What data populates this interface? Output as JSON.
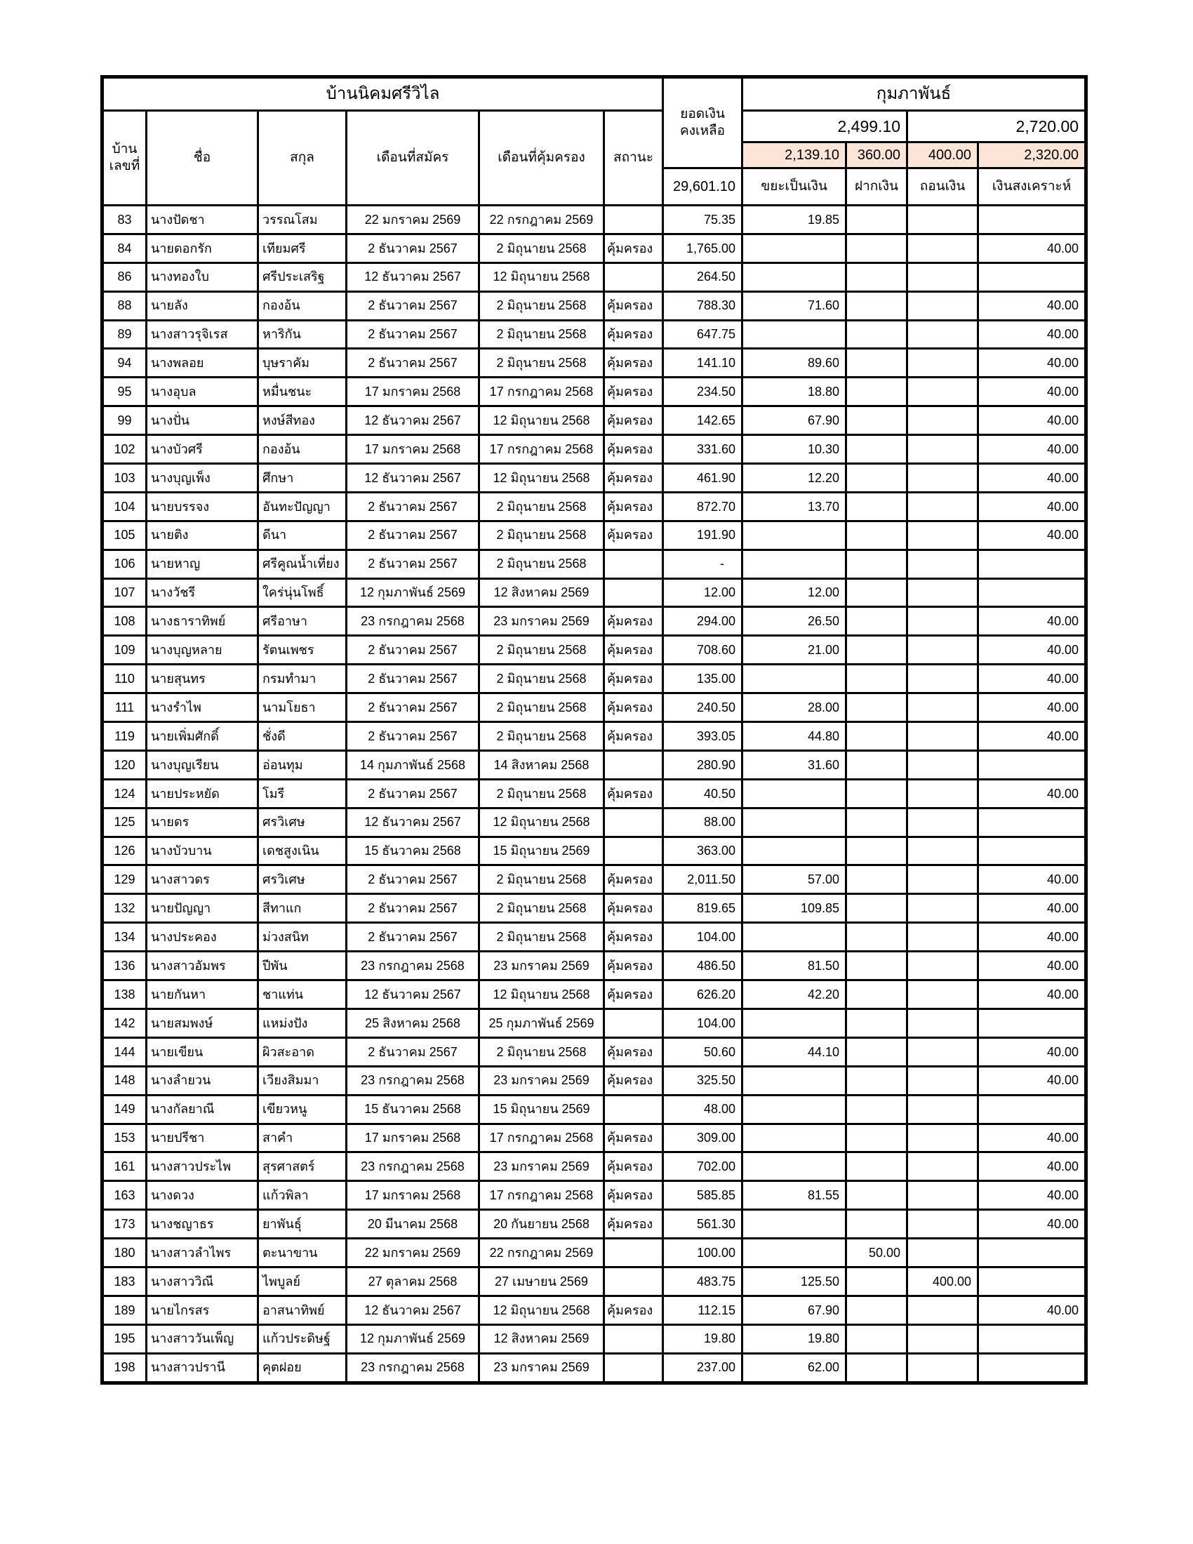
{
  "table": {
    "title": "บ้านนิคมศรีวิไล",
    "month_header": "กุมภาพันธ์",
    "balance_header": {
      "line1": "ยอดเงิน",
      "line2": "คงเหลือ"
    },
    "month_totals": {
      "group1": "2,499.10",
      "group2": "2,720.00"
    },
    "subtotals": {
      "waste": "2,139.10",
      "deposit": "360.00",
      "withdraw": "400.00",
      "aid": "2,320.00"
    },
    "total_balance": "29,601.10",
    "accent_color": "#fce4d6",
    "columns": {
      "house_no": {
        "line1": "บ้าน",
        "line2": "เลขที่"
      },
      "first_name": "ชื่อ",
      "last_name": "สกุล",
      "apply_month": "เดือนที่สมัคร",
      "cover_month": "เดือนที่คุ้มครอง",
      "status": "สถานะ",
      "waste_money": "ขยะเป็นเงิน",
      "deposit": "ฝากเงิน",
      "withdraw": "ถอนเงิน",
      "aid": "เงินสงเคราะห์"
    },
    "status_protected_label": "คุ้มครอง",
    "rows": [
      {
        "house_no": "83",
        "first_name": "นางปัดชา",
        "last_name": "วรรณโสม",
        "apply_month": "22 มกราคม 2569",
        "cover_month": "22 กรกฎาคม 2569",
        "status": "",
        "balance": "75.35",
        "waste": "19.85",
        "deposit": "",
        "withdraw": "",
        "aid": ""
      },
      {
        "house_no": "84",
        "first_name": "นายดอกรัก",
        "last_name": "เทียมศรี",
        "apply_month": "2 ธันวาคม 2567",
        "cover_month": "2 มิถุนายน 2568",
        "status": "คุ้มครอง",
        "balance": "1,765.00",
        "waste": "",
        "deposit": "",
        "withdraw": "",
        "aid": "40.00"
      },
      {
        "house_no": "86",
        "first_name": "นางทองใบ",
        "last_name": "ศรีประเสริฐ",
        "apply_month": "12 ธันวาคม 2567",
        "cover_month": "12 มิถุนายน 2568",
        "status": "",
        "balance": "264.50",
        "waste": "",
        "deposit": "",
        "withdraw": "",
        "aid": ""
      },
      {
        "house_no": "88",
        "first_name": "นายลัง",
        "last_name": "กองอ้น",
        "apply_month": "2 ธันวาคม 2567",
        "cover_month": "2 มิถุนายน 2568",
        "status": "คุ้มครอง",
        "balance": "788.30",
        "waste": "71.60",
        "deposit": "",
        "withdraw": "",
        "aid": "40.00"
      },
      {
        "house_no": "89",
        "first_name": "นางสาวรุจิเรส",
        "last_name": "หาริกัน",
        "apply_month": "2 ธันวาคม 2567",
        "cover_month": "2 มิถุนายน 2568",
        "status": "คุ้มครอง",
        "balance": "647.75",
        "waste": "",
        "deposit": "",
        "withdraw": "",
        "aid": "40.00"
      },
      {
        "house_no": "94",
        "first_name": "นางพลอย",
        "last_name": "บุษราคัม",
        "apply_month": "2 ธันวาคม 2567",
        "cover_month": "2 มิถุนายน 2568",
        "status": "คุ้มครอง",
        "balance": "141.10",
        "waste": "89.60",
        "deposit": "",
        "withdraw": "",
        "aid": "40.00"
      },
      {
        "house_no": "95",
        "first_name": "นางอุบล",
        "last_name": "หมื่นชนะ",
        "apply_month": "17 มกราคม 2568",
        "cover_month": "17 กรกฎาคม 2568",
        "status": "คุ้มครอง",
        "balance": "234.50",
        "waste": "18.80",
        "deposit": "",
        "withdraw": "",
        "aid": "40.00"
      },
      {
        "house_no": "99",
        "first_name": "นางปั่น",
        "last_name": "หงษ์สีทอง",
        "apply_month": "12 ธันวาคม 2567",
        "cover_month": "12 มิถุนายน 2568",
        "status": "คุ้มครอง",
        "balance": "142.65",
        "waste": "67.90",
        "deposit": "",
        "withdraw": "",
        "aid": "40.00"
      },
      {
        "house_no": "102",
        "first_name": "นางบัวศรี",
        "last_name": "กองอ้น",
        "apply_month": "17 มกราคม 2568",
        "cover_month": "17 กรกฎาคม 2568",
        "status": "คุ้มครอง",
        "balance": "331.60",
        "waste": "10.30",
        "deposit": "",
        "withdraw": "",
        "aid": "40.00"
      },
      {
        "house_no": "103",
        "first_name": "นางบุญเพ็ง",
        "last_name": "ศึกษา",
        "apply_month": "12 ธันวาคม 2567",
        "cover_month": "12 มิถุนายน 2568",
        "status": "คุ้มครอง",
        "balance": "461.90",
        "waste": "12.20",
        "deposit": "",
        "withdraw": "",
        "aid": "40.00"
      },
      {
        "house_no": "104",
        "first_name": "นายบรรจง",
        "last_name": "อันทะปัญญา",
        "apply_month": "2 ธันวาคม 2567",
        "cover_month": "2 มิถุนายน 2568",
        "status": "คุ้มครอง",
        "balance": "872.70",
        "waste": "13.70",
        "deposit": "",
        "withdraw": "",
        "aid": "40.00"
      },
      {
        "house_no": "105",
        "first_name": "นายติง",
        "last_name": "ดีนา",
        "apply_month": "2 ธันวาคม 2567",
        "cover_month": "2 มิถุนายน 2568",
        "status": "คุ้มครอง",
        "balance": "191.90",
        "waste": "",
        "deposit": "",
        "withdraw": "",
        "aid": "40.00"
      },
      {
        "house_no": "106",
        "first_name": "นายหาญ",
        "last_name": "ศรีคูณน้ำเที่ยง",
        "apply_month": "2 ธันวาคม 2567",
        "cover_month": "2 มิถุนายน 2568",
        "status": "",
        "balance": "-",
        "waste": "",
        "deposit": "",
        "withdraw": "",
        "aid": ""
      },
      {
        "house_no": "107",
        "first_name": "นางวัชรี",
        "last_name": "ใคร่นุ่นโพธิ์",
        "apply_month": "12 กุมภาพันธ์ 2569",
        "cover_month": "12 สิงหาคม 2569",
        "status": "",
        "balance": "12.00",
        "waste": "12.00",
        "deposit": "",
        "withdraw": "",
        "aid": ""
      },
      {
        "house_no": "108",
        "first_name": "นางธาราทิพย์",
        "last_name": "ศรีอาษา",
        "apply_month": "23 กรกฎาคม 2568",
        "cover_month": "23 มกราคม 2569",
        "status": "คุ้มครอง",
        "balance": "294.00",
        "waste": "26.50",
        "deposit": "",
        "withdraw": "",
        "aid": "40.00"
      },
      {
        "house_no": "109",
        "first_name": "นางบุญหลาย",
        "last_name": "รัตนเพชร",
        "apply_month": "2 ธันวาคม 2567",
        "cover_month": "2 มิถุนายน 2568",
        "status": "คุ้มครอง",
        "balance": "708.60",
        "waste": "21.00",
        "deposit": "",
        "withdraw": "",
        "aid": "40.00"
      },
      {
        "house_no": "110",
        "first_name": "นายสุนทร",
        "last_name": "กรมทำมา",
        "apply_month": "2 ธันวาคม 2567",
        "cover_month": "2 มิถุนายน 2568",
        "status": "คุ้มครอง",
        "balance": "135.00",
        "waste": "",
        "deposit": "",
        "withdraw": "",
        "aid": "40.00"
      },
      {
        "house_no": "111",
        "first_name": "นางรำไพ",
        "last_name": "นามโยธา",
        "apply_month": "2 ธันวาคม 2567",
        "cover_month": "2 มิถุนายน 2568",
        "status": "คุ้มครอง",
        "balance": "240.50",
        "waste": "28.00",
        "deposit": "",
        "withdraw": "",
        "aid": "40.00"
      },
      {
        "house_no": "119",
        "first_name": "นายเพิ่มศักดิ์",
        "last_name": "ชั่งดี",
        "apply_month": "2 ธันวาคม 2567",
        "cover_month": "2 มิถุนายน 2568",
        "status": "คุ้มครอง",
        "balance": "393.05",
        "waste": "44.80",
        "deposit": "",
        "withdraw": "",
        "aid": "40.00"
      },
      {
        "house_no": "120",
        "first_name": "นางบุญเรียน",
        "last_name": "อ่อนทุม",
        "apply_month": "14 กุมภาพันธ์ 2568",
        "cover_month": "14 สิงหาคม 2568",
        "status": "",
        "balance": "280.90",
        "waste": "31.60",
        "deposit": "",
        "withdraw": "",
        "aid": ""
      },
      {
        "house_no": "124",
        "first_name": "นายประหยัด",
        "last_name": "โมรี",
        "apply_month": "2 ธันวาคม 2567",
        "cover_month": "2 มิถุนายน 2568",
        "status": "คุ้มครอง",
        "balance": "40.50",
        "waste": "",
        "deposit": "",
        "withdraw": "",
        "aid": "40.00"
      },
      {
        "house_no": "125",
        "first_name": "นายดร",
        "last_name": "ศรวิเศษ",
        "apply_month": "12 ธันวาคม 2567",
        "cover_month": "12 มิถุนายน 2568",
        "status": "",
        "balance": "88.00",
        "waste": "",
        "deposit": "",
        "withdraw": "",
        "aid": ""
      },
      {
        "house_no": "126",
        "first_name": "นางบัวบาน",
        "last_name": "เดชสูงเนิน",
        "apply_month": "15 ธันวาคม 2568",
        "cover_month": "15 มิถุนายน 2569",
        "status": "",
        "balance": "363.00",
        "waste": "",
        "deposit": "",
        "withdraw": "",
        "aid": ""
      },
      {
        "house_no": "129",
        "first_name": "นางสาวดร",
        "last_name": "ศรวิเศษ",
        "apply_month": "2 ธันวาคม 2567",
        "cover_month": "2 มิถุนายน 2568",
        "status": "คุ้มครอง",
        "balance": "2,011.50",
        "waste": "57.00",
        "deposit": "",
        "withdraw": "",
        "aid": "40.00"
      },
      {
        "house_no": "132",
        "first_name": "นายปัญญา",
        "last_name": "สีทาแก",
        "apply_month": "2 ธันวาคม 2567",
        "cover_month": "2 มิถุนายน 2568",
        "status": "คุ้มครอง",
        "balance": "819.65",
        "waste": "109.85",
        "deposit": "",
        "withdraw": "",
        "aid": "40.00"
      },
      {
        "house_no": "134",
        "first_name": "นางประคอง",
        "last_name": "ม่วงสนิท",
        "apply_month": "2 ธันวาคม 2567",
        "cover_month": "2 มิถุนายน 2568",
        "status": "คุ้มครอง",
        "balance": "104.00",
        "waste": "",
        "deposit": "",
        "withdraw": "",
        "aid": "40.00"
      },
      {
        "house_no": "136",
        "first_name": "นางสาวอัมพร",
        "last_name": "ปีพัน",
        "apply_month": "23 กรกฎาคม 2568",
        "cover_month": "23 มกราคม 2569",
        "status": "คุ้มครอง",
        "balance": "486.50",
        "waste": "81.50",
        "deposit": "",
        "withdraw": "",
        "aid": "40.00"
      },
      {
        "house_no": "138",
        "first_name": "นายกันหา",
        "last_name": "ชาแท่น",
        "apply_month": "12 ธันวาคม 2567",
        "cover_month": "12 มิถุนายน 2568",
        "status": "คุ้มครอง",
        "balance": "626.20",
        "waste": "42.20",
        "deposit": "",
        "withdraw": "",
        "aid": "40.00"
      },
      {
        "house_no": "142",
        "first_name": "นายสมพงษ์",
        "last_name": "แหม่งปัง",
        "apply_month": "25 สิงหาคม 2568",
        "cover_month": "25 กุมภาพันธ์ 2569",
        "status": "",
        "balance": "104.00",
        "waste": "",
        "deposit": "",
        "withdraw": "",
        "aid": ""
      },
      {
        "house_no": "144",
        "first_name": "นายเขียน",
        "last_name": "ผิวสะอาด",
        "apply_month": "2 ธันวาคม 2567",
        "cover_month": "2 มิถุนายน 2568",
        "status": "คุ้มครอง",
        "balance": "50.60",
        "waste": "44.10",
        "deposit": "",
        "withdraw": "",
        "aid": "40.00"
      },
      {
        "house_no": "148",
        "first_name": "นางลำยวน",
        "last_name": "เวียงสิมมา",
        "apply_month": "23 กรกฎาคม 2568",
        "cover_month": "23 มกราคม 2569",
        "status": "คุ้มครอง",
        "balance": "325.50",
        "waste": "",
        "deposit": "",
        "withdraw": "",
        "aid": "40.00"
      },
      {
        "house_no": "149",
        "first_name": "นางกัลยาณี",
        "last_name": "เขียวหนู",
        "apply_month": "15 ธันวาคม 2568",
        "cover_month": "15 มิถุนายน 2569",
        "status": "",
        "balance": "48.00",
        "waste": "",
        "deposit": "",
        "withdraw": "",
        "aid": ""
      },
      {
        "house_no": "153",
        "first_name": "นายปรีชา",
        "last_name": "สาคำ",
        "apply_month": "17 มกราคม 2568",
        "cover_month": "17 กรกฎาคม 2568",
        "status": "คุ้มครอง",
        "balance": "309.00",
        "waste": "",
        "deposit": "",
        "withdraw": "",
        "aid": "40.00"
      },
      {
        "house_no": "161",
        "first_name": "นางสาวประไพ",
        "last_name": "สุรศาสตร์",
        "apply_month": "23 กรกฎาคม 2568",
        "cover_month": "23 มกราคม 2569",
        "status": "คุ้มครอง",
        "balance": "702.00",
        "waste": "",
        "deposit": "",
        "withdraw": "",
        "aid": "40.00"
      },
      {
        "house_no": "163",
        "first_name": "นางดวง",
        "last_name": "แก้วพิลา",
        "apply_month": "17 มกราคม 2568",
        "cover_month": "17 กรกฎาคม 2568",
        "status": "คุ้มครอง",
        "balance": "585.85",
        "waste": "81.55",
        "deposit": "",
        "withdraw": "",
        "aid": "40.00"
      },
      {
        "house_no": "173",
        "first_name": "นางชญาธร",
        "last_name": "ยาพันธุ์",
        "apply_month": "20 มีนาคม 2568",
        "cover_month": "20 กันยายน 2568",
        "status": "คุ้มครอง",
        "balance": "561.30",
        "waste": "",
        "deposit": "",
        "withdraw": "",
        "aid": "40.00"
      },
      {
        "house_no": "180",
        "first_name": "นางสาวลำไพร",
        "last_name": "ตะนาขาน",
        "apply_month": "22 มกราคม 2569",
        "cover_month": "22 กรกฎาคม 2569",
        "status": "",
        "balance": "100.00",
        "waste": "",
        "deposit": "50.00",
        "withdraw": "",
        "aid": ""
      },
      {
        "house_no": "183",
        "first_name": "นางสาววิณี",
        "last_name": "ไพบูลย์",
        "apply_month": "27 ตุลาคม 2568",
        "cover_month": "27 เมษายน 2569",
        "status": "",
        "balance": "483.75",
        "waste": "125.50",
        "deposit": "",
        "withdraw": "400.00",
        "aid": ""
      },
      {
        "house_no": "189",
        "first_name": "นายไกรสร",
        "last_name": "อาสนาทิพย์",
        "apply_month": "12 ธันวาคม 2567",
        "cover_month": "12 มิถุนายน 2568",
        "status": "คุ้มครอง",
        "balance": "112.15",
        "waste": "67.90",
        "deposit": "",
        "withdraw": "",
        "aid": "40.00"
      },
      {
        "house_no": "195",
        "first_name": "นางสาววันเพ็ญ",
        "last_name": "แก้วประดิษฐ์",
        "apply_month": "12 กุมภาพันธ์ 2569",
        "cover_month": "12 สิงหาคม 2569",
        "status": "",
        "balance": "19.80",
        "waste": "19.80",
        "deposit": "",
        "withdraw": "",
        "aid": ""
      },
      {
        "house_no": "198",
        "first_name": "นางสาวปรานี",
        "last_name": "คุตฝอย",
        "apply_month": "23 กรกฎาคม 2568",
        "cover_month": "23 มกราคม 2569",
        "status": "",
        "balance": "237.00",
        "waste": "62.00",
        "deposit": "",
        "withdraw": "",
        "aid": ""
      }
    ]
  }
}
